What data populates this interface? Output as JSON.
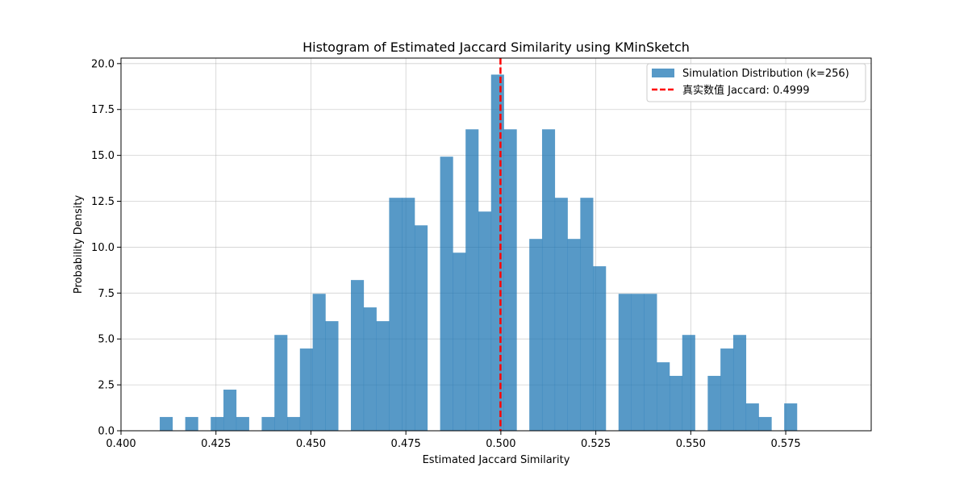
{
  "chart_data": {
    "type": "bar",
    "title": "Histogram of Estimated Jaccard Similarity using KMinSketch",
    "xlabel": "Estimated Jaccard Similarity",
    "ylabel": "Probability Density",
    "xlim": [
      0.4,
      0.5975
    ],
    "ylim": [
      0,
      20.3
    ],
    "xticks": [
      0.4,
      0.425,
      0.45,
      0.475,
      0.5,
      0.525,
      0.55,
      0.575
    ],
    "xtick_labels": [
      "0.400",
      "0.425",
      "0.450",
      "0.475",
      "0.500",
      "0.525",
      "0.550",
      "0.575"
    ],
    "yticks": [
      0,
      2.5,
      5,
      7.5,
      10,
      12.5,
      15,
      17.5,
      20
    ],
    "ytick_labels": [
      "0.0",
      "2.5",
      "5.0",
      "7.5",
      "10.0",
      "12.5",
      "15.0",
      "17.5",
      "20.0"
    ],
    "grid": true,
    "legend_position": "top-right",
    "bin_start": 0.4102,
    "bin_width": 0.003355,
    "series": [
      {
        "name": "Simulation Distribution (k=256)",
        "color": "#1f77b4",
        "opacity": 0.75,
        "values": [
          0.75,
          0,
          0.75,
          0,
          0.75,
          2.24,
          0.75,
          0,
          0.75,
          5.22,
          0.75,
          4.48,
          7.46,
          5.97,
          0,
          8.21,
          6.72,
          5.97,
          12.69,
          12.69,
          11.19,
          0,
          14.93,
          9.7,
          16.42,
          11.94,
          19.4,
          16.42,
          0,
          10.45,
          16.42,
          12.69,
          10.45,
          12.69,
          8.96,
          0,
          7.46,
          7.46,
          7.46,
          3.73,
          2.99,
          5.22,
          0,
          2.99,
          4.48,
          5.22,
          1.49,
          0.75,
          0,
          1.49
        ]
      }
    ],
    "reference_line": {
      "label": "真实数值 Jaccard: 0.4999",
      "x": 0.4999,
      "color": "#ff0000",
      "style": "dashed"
    }
  }
}
